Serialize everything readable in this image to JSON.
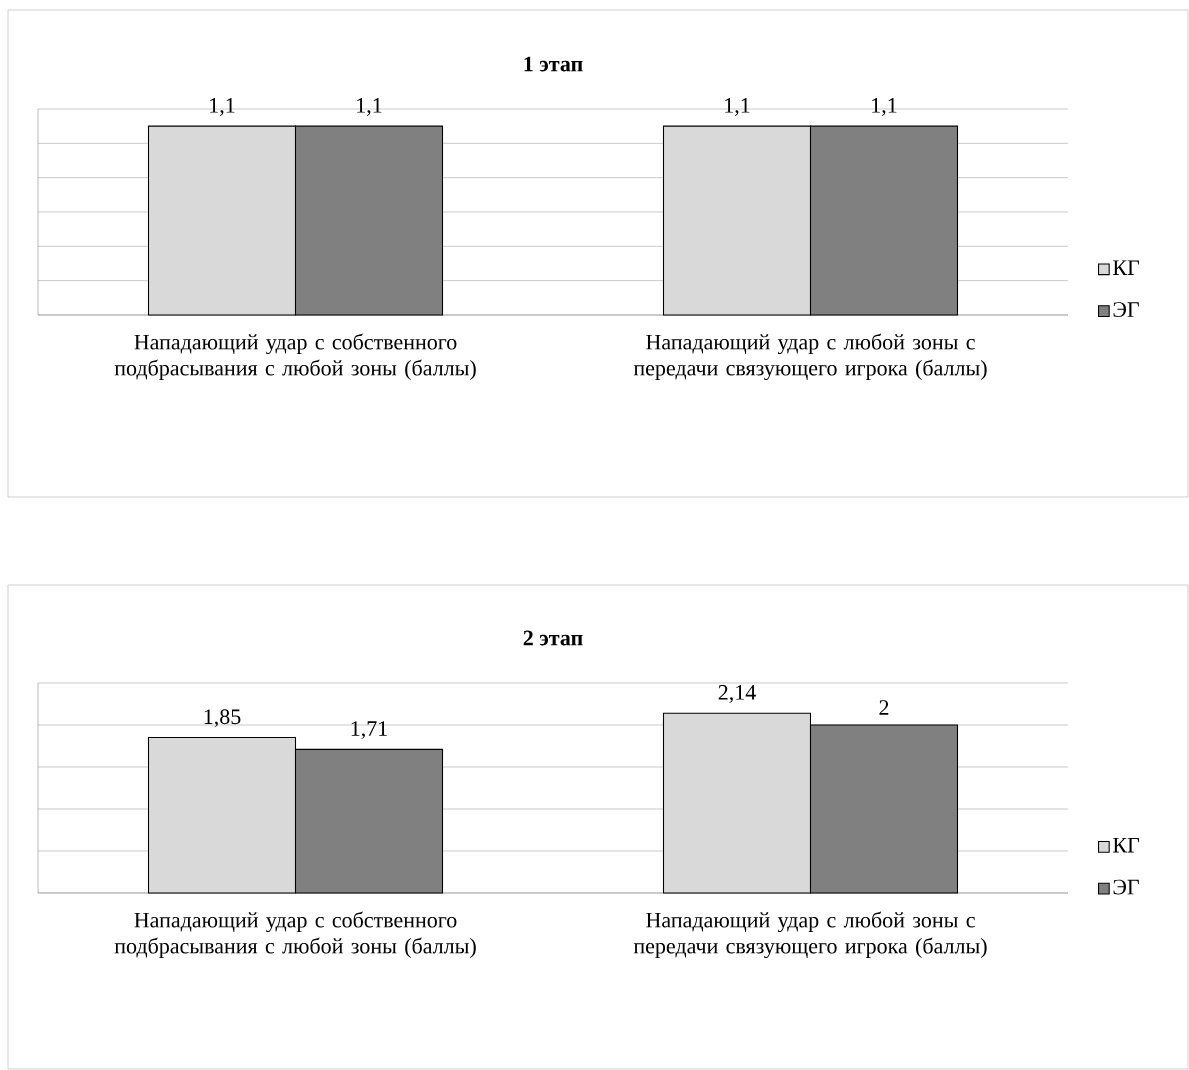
{
  "chart_data": [
    {
      "type": "bar",
      "title": "1 этап",
      "categories": [
        "Нападающий удар с собственного подбрасывания с любой зоны (баллы)",
        "Нападающий удар с любой зоны с передачи связующего игрока (баллы)"
      ],
      "series": [
        {
          "name": "КГ",
          "color": "#d9d9d9",
          "values": [
            1.1,
            1.1
          ],
          "value_labels": [
            "1,1",
            "1,1"
          ]
        },
        {
          "name": "ЭГ",
          "color": "#808080",
          "values": [
            1.1,
            1.1
          ],
          "value_labels": [
            "1,1",
            "1,1"
          ]
        }
      ],
      "ylim": [
        0,
        1.2
      ],
      "yticks": [
        {
          "value": 0,
          "label": null
        },
        {
          "value": 0.2,
          "label": null
        },
        {
          "value": 0.4,
          "label": null
        },
        {
          "value": 0.6,
          "label": null
        },
        {
          "value": 0.8,
          "label": null
        },
        {
          "value": 1.0,
          "label": null
        },
        {
          "value": 1.2,
          "label": null
        }
      ],
      "tick_labels": "x",
      "grid": "y",
      "legend": "right"
    },
    {
      "type": "bar",
      "title": "2 этап",
      "categories": [
        "Нападающий удар с собственного подбрасывания с любой зоны (баллы)",
        "Нападающий удар с любой зоны с передачи связующего игрока (баллы)"
      ],
      "series": [
        {
          "name": "КГ",
          "color": "#d9d9d9",
          "values": [
            1.85,
            2.14
          ],
          "value_labels": [
            "1,85",
            "2,14"
          ]
        },
        {
          "name": "ЭГ",
          "color": "#808080",
          "values": [
            1.71,
            2
          ],
          "value_labels": [
            "1,71",
            "2"
          ]
        }
      ],
      "ylim": [
        0,
        2.5
      ],
      "yticks": [
        {
          "value": 0,
          "label": null
        },
        {
          "value": 0.5,
          "label": null
        },
        {
          "value": 1.0,
          "label": null
        },
        {
          "value": 1.5,
          "label": null
        },
        {
          "value": 2.0,
          "label": null
        },
        {
          "value": 2.5,
          "label": null
        }
      ],
      "tick_labels": "x",
      "grid": "y",
      "legend": "right"
    }
  ]
}
